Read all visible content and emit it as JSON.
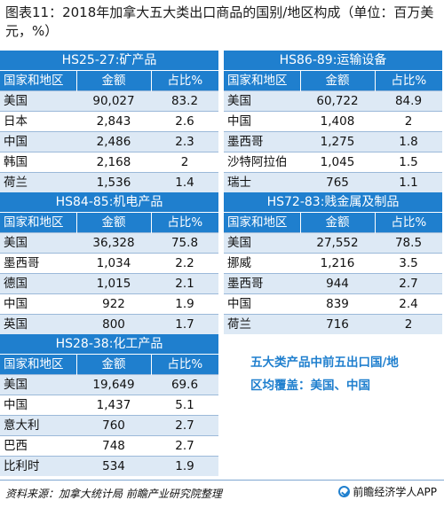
{
  "title": "图表11：2018年加拿大五大类出口商品的国别/地区构成（单位：百万美元，%）",
  "header_cols": [
    "国家和地区",
    "金额",
    "占比%"
  ],
  "blocks": [
    {
      "title": "HS25-27:矿产品",
      "rows": [
        [
          "美国",
          "90,027",
          "83.2"
        ],
        [
          "日本",
          "2,843",
          "2.6"
        ],
        [
          "中国",
          "2,486",
          "2.3"
        ],
        [
          "韩国",
          "2,168",
          "2"
        ],
        [
          "荷兰",
          "1,536",
          "1.4"
        ]
      ]
    },
    {
      "title": "HS86-89:运输设备",
      "rows": [
        [
          "美国",
          "60,722",
          "84.9"
        ],
        [
          "中国",
          "1,408",
          "2"
        ],
        [
          "墨西哥",
          "1,275",
          "1.8"
        ],
        [
          "沙特阿拉伯",
          "1,045",
          "1.5"
        ],
        [
          "瑞士",
          "765",
          "1.1"
        ]
      ]
    },
    {
      "title": "HS84-85:机电产品",
      "rows": [
        [
          "美国",
          "36,328",
          "75.8"
        ],
        [
          "墨西哥",
          "1,034",
          "2.2"
        ],
        [
          "德国",
          "1,015",
          "2.1"
        ],
        [
          "中国",
          "922",
          "1.9"
        ],
        [
          "英国",
          "800",
          "1.7"
        ]
      ]
    },
    {
      "title": "HS72-83:贱金属及制品",
      "rows": [
        [
          "美国",
          "27,552",
          "78.5"
        ],
        [
          "挪威",
          "1,216",
          "3.5"
        ],
        [
          "墨西哥",
          "944",
          "2.7"
        ],
        [
          "中国",
          "839",
          "2.4"
        ],
        [
          "荷兰",
          "716",
          "2"
        ]
      ]
    },
    {
      "title": "HS28-38:化工产品",
      "rows": [
        [
          "美国",
          "19,649",
          "69.6"
        ],
        [
          "中国",
          "1,437",
          "5.1"
        ],
        [
          "意大利",
          "760",
          "2.7"
        ],
        [
          "巴西",
          "748",
          "2.7"
        ],
        [
          "比利时",
          "534",
          "1.9"
        ]
      ]
    }
  ],
  "note": "五大类产品中前五出口国/地区均覆盖：美国、中国",
  "source": "资料来源：加拿大统计局 前瞻产业研究院整理",
  "brand": "前瞻经济学人APP",
  "colors": {
    "accent": "#1f7fce",
    "row_alt": "#dde9f5"
  },
  "icons": {
    "brand": "brand-logo-icon"
  }
}
